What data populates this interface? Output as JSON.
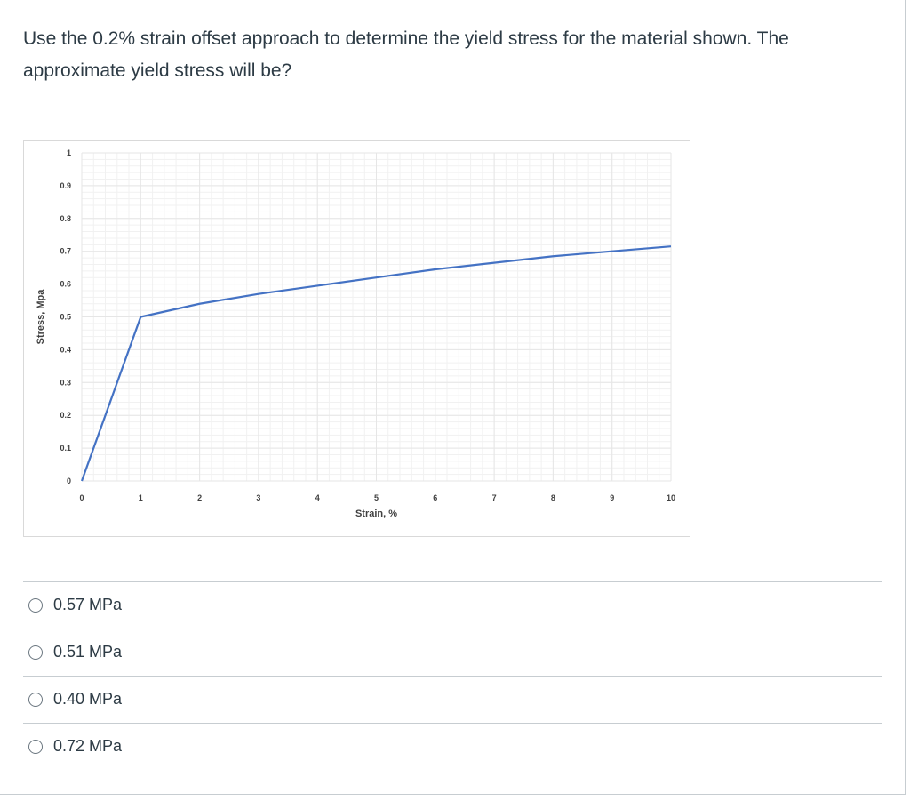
{
  "question": {
    "text": "Use the 0.2% strain offset approach to determine the yield stress for the material shown.  The approximate yield stress will be?"
  },
  "answers": [
    {
      "label": "0.57 MPa"
    },
    {
      "label": "0.51 MPa"
    },
    {
      "label": "0.40 MPa"
    },
    {
      "label": "0.72 MPa"
    }
  ],
  "colors": {
    "line": "#4472c4",
    "grid": "#e6e6e6",
    "text": "#2d3b45"
  },
  "chart_data": {
    "type": "line",
    "title": "",
    "xlabel": "Strain, %",
    "ylabel": "Stress, Mpa",
    "xlim": [
      0,
      10
    ],
    "ylim": [
      0,
      1
    ],
    "xticks": [
      "0",
      "1",
      "2",
      "3",
      "4",
      "5",
      "6",
      "7",
      "8",
      "9",
      "10"
    ],
    "yticks": [
      "0",
      "0.1",
      "0.2",
      "0.3",
      "0.4",
      "0.5",
      "0.6",
      "0.7",
      "0.8",
      "0.9",
      "1"
    ],
    "grid": true,
    "series": [
      {
        "x": [
          0,
          1,
          2,
          3,
          4,
          5,
          6,
          7,
          8,
          9,
          10
        ],
        "y": [
          0,
          0.5,
          0.54,
          0.57,
          0.595,
          0.62,
          0.645,
          0.665,
          0.685,
          0.7,
          0.715
        ]
      }
    ]
  }
}
